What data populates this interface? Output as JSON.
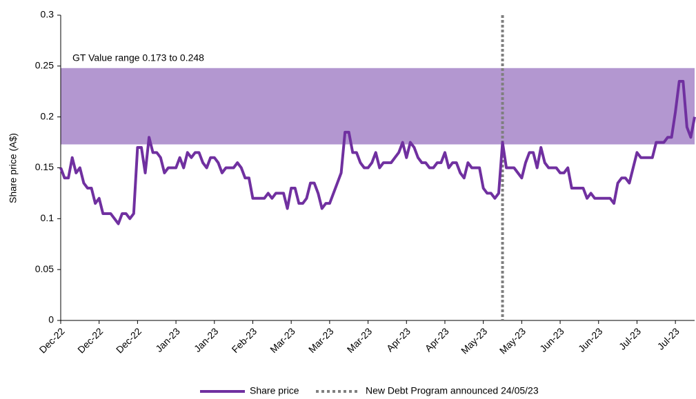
{
  "chart_data": {
    "type": "line",
    "y_label": "Share price (A$)",
    "categories": [
      "Dec-22",
      null,
      null,
      null,
      null,
      null,
      null,
      null,
      null,
      null,
      "Dec-22",
      null,
      null,
      null,
      null,
      null,
      null,
      null,
      null,
      null,
      "Dec-22",
      null,
      null,
      null,
      null,
      null,
      null,
      null,
      null,
      null,
      "Jan-23",
      null,
      null,
      null,
      null,
      null,
      null,
      null,
      null,
      null,
      "Jan-23",
      null,
      null,
      null,
      null,
      null,
      null,
      null,
      null,
      null,
      "Feb-23",
      null,
      null,
      null,
      null,
      null,
      null,
      null,
      null,
      null,
      "Mar-23",
      null,
      null,
      null,
      null,
      null,
      null,
      null,
      null,
      null,
      "Mar-23",
      null,
      null,
      null,
      null,
      null,
      null,
      null,
      null,
      null,
      "Mar-23",
      null,
      null,
      null,
      null,
      null,
      null,
      null,
      null,
      null,
      "Apr-23",
      null,
      null,
      null,
      null,
      null,
      null,
      null,
      null,
      null,
      "Apr-23",
      null,
      null,
      null,
      null,
      null,
      null,
      null,
      null,
      null,
      "May-23",
      null,
      null,
      null,
      null,
      null,
      null,
      null,
      null,
      null,
      "May-23",
      null,
      null,
      null,
      null,
      null,
      null,
      null,
      null,
      null,
      "Jun-23",
      null,
      null,
      null,
      null,
      null,
      null,
      null,
      null,
      null,
      "Jun-23",
      null,
      null,
      null,
      null,
      null,
      null,
      null,
      null,
      null,
      "Jul-23",
      null,
      null,
      null,
      null,
      null,
      null,
      null,
      null,
      null,
      "Jul-23",
      null,
      null,
      null,
      null,
      null
    ],
    "series": [
      {
        "name": "Share price",
        "color": "#7030a0",
        "values": [
          0.15,
          0.14,
          0.14,
          0.16,
          0.145,
          0.15,
          0.135,
          0.13,
          0.13,
          0.115,
          0.12,
          0.105,
          0.105,
          0.105,
          0.1,
          0.095,
          0.105,
          0.105,
          0.1,
          0.105,
          0.17,
          0.17,
          0.145,
          0.18,
          0.165,
          0.165,
          0.16,
          0.145,
          0.15,
          0.15,
          0.15,
          0.16,
          0.15,
          0.165,
          0.16,
          0.165,
          0.165,
          0.155,
          0.15,
          0.16,
          0.16,
          0.155,
          0.145,
          0.15,
          0.15,
          0.15,
          0.155,
          0.15,
          0.14,
          0.14,
          0.12,
          0.12,
          0.12,
          0.12,
          0.125,
          0.12,
          0.125,
          0.125,
          0.125,
          0.11,
          0.13,
          0.13,
          0.115,
          0.115,
          0.12,
          0.135,
          0.135,
          0.125,
          0.11,
          0.115,
          0.115,
          0.125,
          0.135,
          0.145,
          0.185,
          0.185,
          0.165,
          0.165,
          0.155,
          0.15,
          0.15,
          0.155,
          0.165,
          0.15,
          0.155,
          0.155,
          0.155,
          0.16,
          0.165,
          0.175,
          0.16,
          0.175,
          0.17,
          0.16,
          0.155,
          0.155,
          0.15,
          0.15,
          0.155,
          0.155,
          0.165,
          0.15,
          0.155,
          0.155,
          0.145,
          0.14,
          0.155,
          0.15,
          0.15,
          0.15,
          0.13,
          0.125,
          0.125,
          0.12,
          0.125,
          0.175,
          0.15,
          0.15,
          0.15,
          0.145,
          0.14,
          0.155,
          0.165,
          0.165,
          0.15,
          0.17,
          0.155,
          0.15,
          0.15,
          0.15,
          0.145,
          0.145,
          0.15,
          0.13,
          0.13,
          0.13,
          0.13,
          0.12,
          0.125,
          0.12,
          0.12,
          0.12,
          0.12,
          0.12,
          0.115,
          0.135,
          0.14,
          0.14,
          0.135,
          0.15,
          0.165,
          0.16,
          0.16,
          0.16,
          0.16,
          0.175,
          0.175,
          0.175,
          0.18,
          0.18,
          0.205,
          0.235,
          0.235,
          0.19,
          0.18,
          0.2
        ]
      }
    ],
    "band": {
      "label": "GT Value range 0.173 to 0.248",
      "from": 0.173,
      "to": 0.248,
      "color": "#b397d0"
    },
    "event": {
      "name": "New Debt Program announced 24/05/23",
      "at": 115,
      "color": "#7f7f7f"
    },
    "ylim": [
      0,
      0.3
    ],
    "yticks": [
      0,
      0.05,
      0.1,
      0.15,
      0.2,
      0.25,
      0.3
    ],
    "legend": "bottom"
  }
}
